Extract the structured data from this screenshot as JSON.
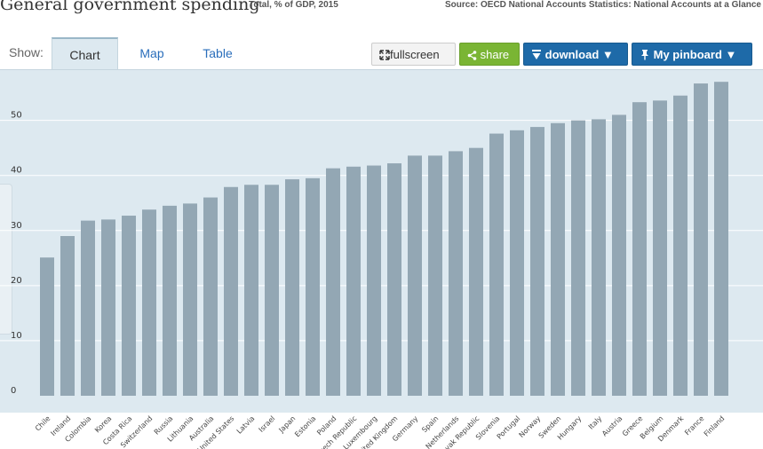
{
  "header": {
    "title": "General government spending",
    "subtitle": "Total, % of GDP, 2015",
    "source": "Source: OECD National Accounts Statistics: National Accounts at a Glance"
  },
  "toolbar": {
    "show_label": "Show:",
    "tabs": [
      {
        "label": "Chart",
        "active": true
      },
      {
        "label": "Map",
        "active": false
      },
      {
        "label": "Table",
        "active": false
      }
    ],
    "fullscreen_label": "fullscreen",
    "share_label": "share",
    "download_label": "download",
    "pinboard_label": "My pinboard"
  },
  "colors": {
    "bar": "#93a7b4",
    "panel_background": "#dde9f0",
    "gridline": "#ffffff",
    "share_button": "#7ab534",
    "primary_button": "#1e6aa8"
  },
  "icons": [
    "fullscreen-icon",
    "share-icon",
    "download-icon",
    "pin-icon",
    "caret-down-icon"
  ],
  "chart_data": {
    "type": "bar",
    "categories": [
      "Chile",
      "Ireland",
      "Colombia",
      "Korea",
      "Costa Rica",
      "Switzerland",
      "Russia",
      "Lithuania",
      "Australia",
      "United States",
      "Latvia",
      "Israel",
      "Japan",
      "Estonia",
      "Poland",
      "Czech Republic",
      "Luxembourg",
      "United Kingdom",
      "Germany",
      "Spain",
      "Netherlands",
      "Slovak Republic",
      "Slovenia",
      "Portugal",
      "Norway",
      "Sweden",
      "Hungary",
      "Italy",
      "Austria",
      "Greece",
      "Belgium",
      "Denmark",
      "France",
      "Finland"
    ],
    "values": [
      25.1,
      29.0,
      31.8,
      32.0,
      32.7,
      33.8,
      34.5,
      34.9,
      36.0,
      37.9,
      38.3,
      38.3,
      39.3,
      39.5,
      41.3,
      41.6,
      41.8,
      42.2,
      43.6,
      43.6,
      44.4,
      45.0,
      47.6,
      48.2,
      48.8,
      49.5,
      50.0,
      50.2,
      51.0,
      53.3,
      53.6,
      54.5,
      56.7,
      57.0
    ],
    "yticks": [
      0,
      10,
      20,
      30,
      40,
      50
    ],
    "ylim": [
      0,
      58
    ],
    "grid": true,
    "legend": "none"
  }
}
